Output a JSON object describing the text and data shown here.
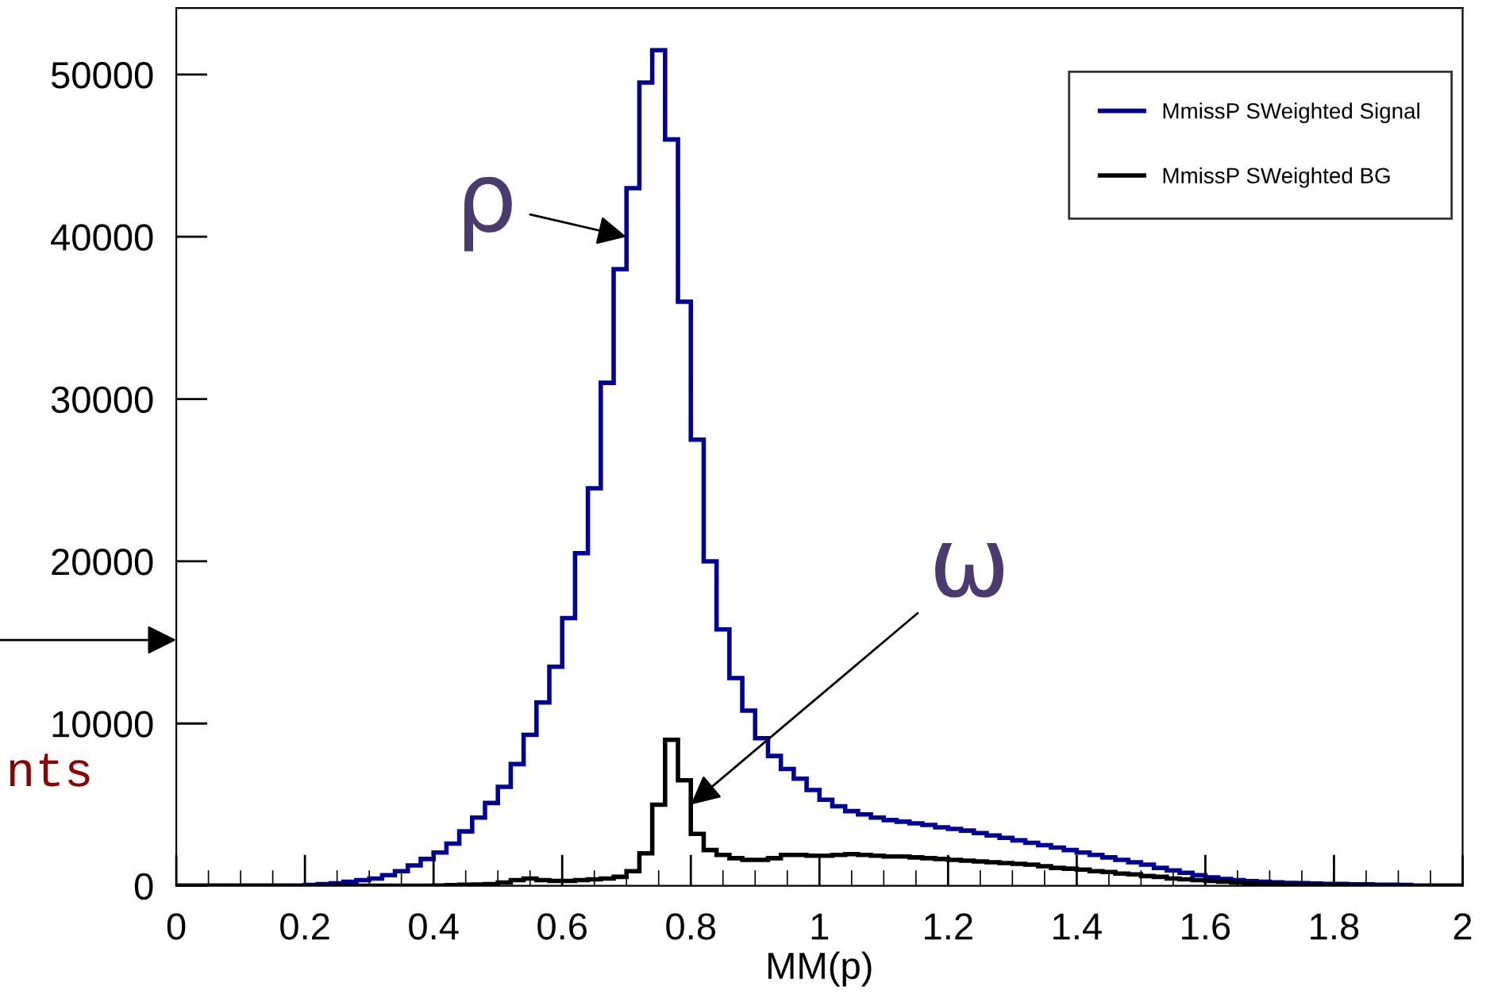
{
  "chart_data": {
    "type": "histogram",
    "xlabel": "MM(p)",
    "bins": [
      0.0,
      0.02,
      0.04,
      0.06,
      0.08,
      0.1,
      0.12,
      0.14,
      0.16,
      0.18,
      0.2,
      0.22,
      0.24,
      0.26,
      0.28,
      0.3,
      0.32,
      0.34,
      0.36,
      0.38,
      0.4,
      0.42,
      0.44,
      0.46,
      0.48,
      0.5,
      0.52,
      0.54,
      0.56,
      0.58,
      0.6,
      0.62,
      0.64,
      0.66,
      0.68,
      0.7,
      0.72,
      0.74,
      0.76,
      0.78,
      0.8,
      0.82,
      0.84,
      0.86,
      0.88,
      0.9,
      0.92,
      0.94,
      0.96,
      0.98,
      1.0,
      1.02,
      1.04,
      1.06,
      1.08,
      1.1,
      1.12,
      1.14,
      1.16,
      1.18,
      1.2,
      1.22,
      1.24,
      1.26,
      1.28,
      1.3,
      1.32,
      1.34,
      1.36,
      1.38,
      1.4,
      1.42,
      1.44,
      1.46,
      1.48,
      1.5,
      1.52,
      1.54,
      1.56,
      1.58,
      1.6,
      1.62,
      1.64,
      1.66,
      1.68,
      1.7,
      1.72,
      1.74,
      1.76,
      1.78,
      1.8,
      1.82,
      1.84,
      1.86,
      1.88,
      1.9,
      1.92,
      1.94,
      1.96,
      1.98,
      2.0
    ],
    "series": [
      {
        "name": "MmissP SWeighted Signal",
        "color": "#000099",
        "values": [
          0,
          0,
          0,
          0,
          0,
          0,
          0,
          0,
          0,
          0,
          50,
          100,
          150,
          250,
          350,
          450,
          650,
          900,
          1250,
          1650,
          2050,
          2600,
          3350,
          4200,
          5100,
          6100,
          7500,
          9300,
          11300,
          13500,
          16500,
          20500,
          24500,
          31000,
          38000,
          43000,
          49500,
          51500,
          46000,
          36000,
          27500,
          20000,
          15800,
          12800,
          10800,
          9100,
          8000,
          7200,
          6600,
          5900,
          5300,
          4900,
          4600,
          4400,
          4200,
          4050,
          3950,
          3850,
          3750,
          3600,
          3500,
          3400,
          3250,
          3100,
          2950,
          2800,
          2650,
          2500,
          2350,
          2200,
          2050,
          1900,
          1750,
          1600,
          1450,
          1300,
          1100,
          950,
          800,
          650,
          520,
          420,
          350,
          290,
          250,
          210,
          180,
          160,
          140,
          120,
          110,
          100,
          90,
          80,
          70,
          50,
          0,
          0,
          0,
          0
        ]
      },
      {
        "name": "MmissP SWeighted BG",
        "color": "#000000",
        "values": [
          0,
          0,
          0,
          0,
          0,
          0,
          0,
          0,
          0,
          0,
          0,
          0,
          0,
          0,
          0,
          0,
          0,
          0,
          0,
          0,
          20,
          40,
          60,
          80,
          100,
          200,
          350,
          450,
          350,
          300,
          300,
          350,
          400,
          450,
          550,
          900,
          2000,
          5000,
          9000,
          6500,
          3200,
          2200,
          1900,
          1700,
          1600,
          1600,
          1700,
          1900,
          1900,
          1850,
          1850,
          1900,
          1950,
          1900,
          1850,
          1800,
          1800,
          1750,
          1700,
          1650,
          1600,
          1550,
          1500,
          1450,
          1400,
          1350,
          1300,
          1200,
          1100,
          1050,
          1000,
          900,
          850,
          750,
          700,
          600,
          550,
          450,
          400,
          350,
          300,
          250,
          200,
          150,
          120,
          100,
          80,
          60,
          50,
          40,
          30,
          20,
          10,
          0,
          0,
          0,
          0,
          0,
          0,
          0
        ]
      }
    ],
    "xlim": [
      0,
      2
    ],
    "ylim": [
      0,
      54100
    ],
    "xticks": [
      0,
      0.2,
      0.4,
      0.6,
      0.8,
      1,
      1.2,
      1.4,
      1.6,
      1.8,
      2
    ],
    "yticks": [
      0,
      10000,
      20000,
      30000,
      40000,
      50000
    ],
    "annotations": [
      {
        "text": "ρ",
        "x": 0.7,
        "y": 40000
      },
      {
        "text": "ω",
        "x": 0.8,
        "y": 5000
      },
      "nts"
    ],
    "grid": false,
    "legend": "top right"
  }
}
